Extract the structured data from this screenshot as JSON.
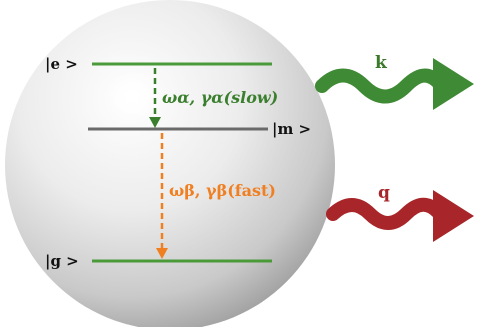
{
  "levels": {
    "excited": {
      "label": "|e >"
    },
    "intermediate": {
      "label": "|m >"
    },
    "ground": {
      "label": "|g >"
    }
  },
  "transitions": {
    "alpha": {
      "label": "ωα, γα(slow)",
      "color": "#3a7f2d"
    },
    "beta": {
      "label": "ωβ, γβ(fast)",
      "color": "#f07f21"
    }
  },
  "photons": {
    "k": {
      "label": "k",
      "color": "#3f8a34"
    },
    "q": {
      "label": "q",
      "color": "#a8262a"
    }
  },
  "colors": {
    "level_line": "#4a9a3a",
    "intermediate_line": "#6a6a6a",
    "sphere": "#e6e6e6"
  }
}
